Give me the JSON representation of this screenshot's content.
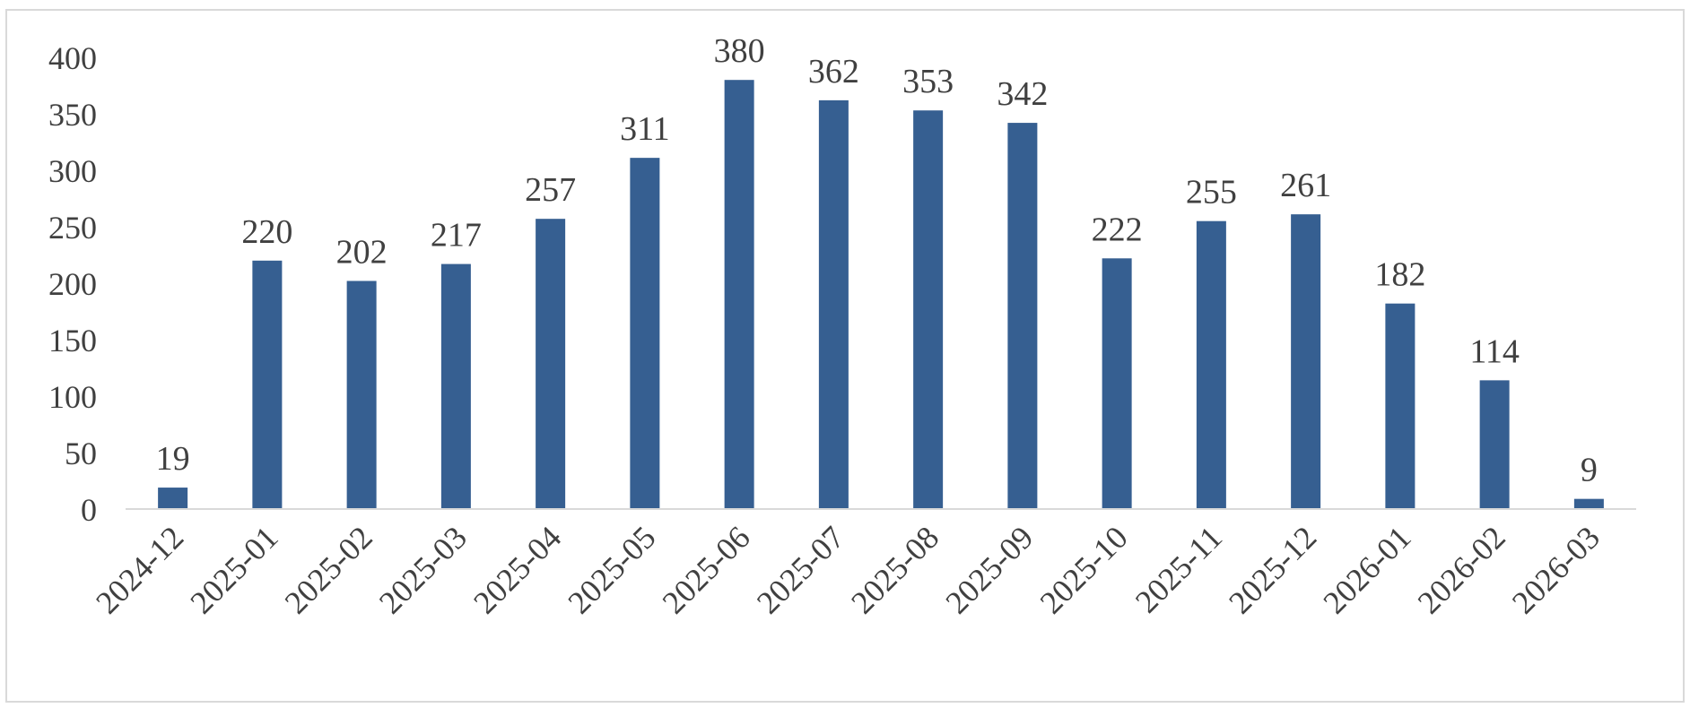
{
  "chart_data": {
    "type": "bar",
    "categories": [
      "2024-12",
      "2025-01",
      "2025-02",
      "2025-03",
      "2025-04",
      "2025-05",
      "2025-06",
      "2025-07",
      "2025-08",
      "2025-09",
      "2025-10",
      "2025-11",
      "2025-12",
      "2026-01",
      "2026-02",
      "2026-03"
    ],
    "values": [
      19,
      220,
      202,
      217,
      257,
      311,
      380,
      362,
      353,
      342,
      222,
      255,
      261,
      182,
      114,
      9
    ],
    "ylim": [
      0,
      400
    ],
    "yticks": [
      0,
      50,
      100,
      150,
      200,
      250,
      300,
      350,
      400
    ],
    "grid": false,
    "legend": "none",
    "colors": {
      "bar": "#365f91",
      "axis": "#d9d9d9",
      "text": "#404040"
    }
  }
}
